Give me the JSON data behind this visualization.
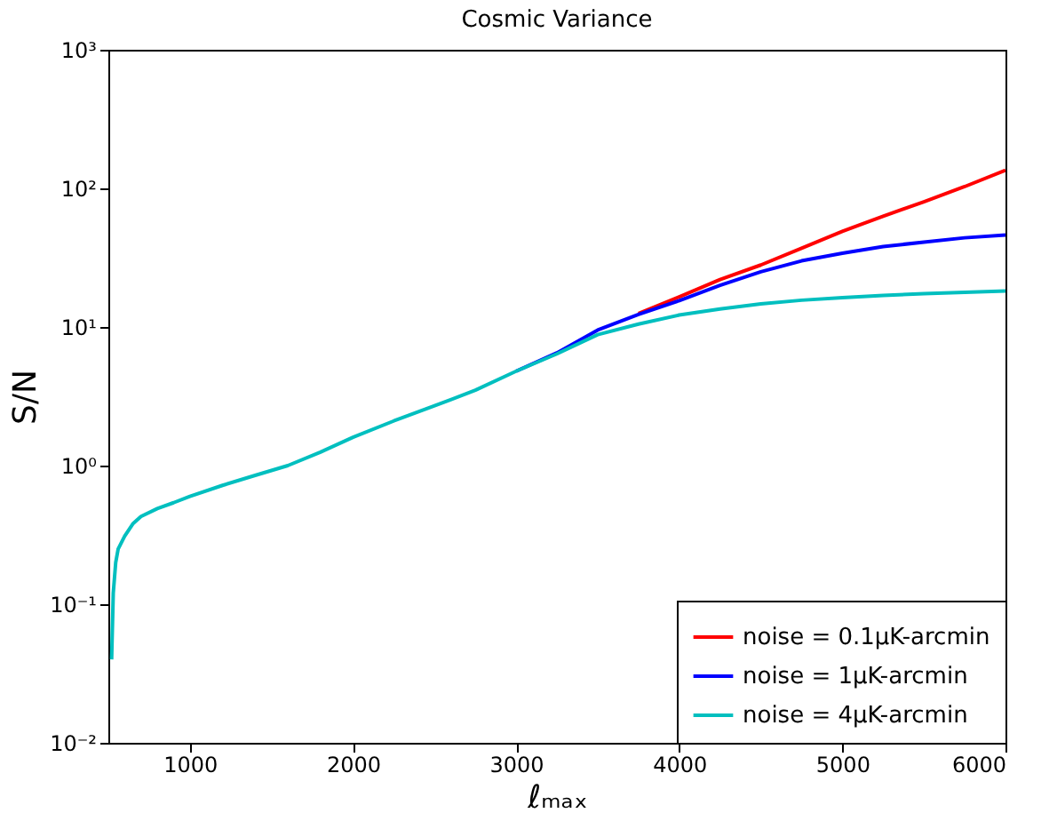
{
  "chart_data": {
    "type": "line",
    "title": "Cosmic Variance",
    "xlabel": "ℓₘₐₓ",
    "ylabel": "S/N",
    "log": "y",
    "x": [
      520,
      530,
      545,
      560,
      600,
      650,
      700,
      800,
      900,
      1000,
      1200,
      1400,
      1600,
      1800,
      2000,
      2250,
      2500,
      2750,
      3000,
      3250,
      3500,
      3750,
      4000,
      4250,
      4500,
      4750,
      5000,
      5250,
      5500,
      5750,
      6000
    ],
    "series": [
      {
        "name": "noise = 0.1μK-arcmin",
        "color": "#ff0000",
        "values": [
          null,
          null,
          null,
          null,
          null,
          null,
          null,
          null,
          null,
          null,
          null,
          null,
          null,
          null,
          null,
          null,
          null,
          null,
          null,
          null,
          null,
          12.5,
          16.5,
          22,
          28,
          37,
          49,
          63,
          80,
          103,
          135
        ]
      },
      {
        "name": "noise = 1μK-arcmin",
        "color": "#0000ff",
        "values": [
          null,
          null,
          null,
          null,
          null,
          null,
          null,
          null,
          null,
          null,
          null,
          null,
          null,
          null,
          null,
          null,
          null,
          null,
          4.8,
          6.5,
          9.5,
          12.3,
          15.5,
          20,
          25,
          30,
          34,
          38,
          41,
          44,
          46
        ]
      },
      {
        "name": "noise = 4μK-arcmin",
        "color": "#00bfbf",
        "values": [
          0.04,
          0.12,
          0.2,
          0.25,
          0.31,
          0.38,
          0.43,
          0.49,
          0.54,
          0.6,
          0.72,
          0.85,
          1.0,
          1.25,
          1.6,
          2.1,
          2.7,
          3.5,
          4.8,
          6.4,
          8.8,
          10.5,
          12.2,
          13.5,
          14.7,
          15.6,
          16.3,
          16.9,
          17.4,
          17.8,
          18.2
        ]
      }
    ],
    "xlim": [
      500,
      6000
    ],
    "xticks": [
      {
        "value": 1000,
        "label": "1000"
      },
      {
        "value": 2000,
        "label": "2000"
      },
      {
        "value": 3000,
        "label": "3000"
      },
      {
        "value": 4000,
        "label": "4000"
      },
      {
        "value": 5000,
        "label": "5000"
      },
      {
        "value": 6000,
        "label": "6000"
      }
    ],
    "ylim": [
      0.01,
      1000
    ],
    "yticks": [
      {
        "value": 0.01,
        "label": "10⁻²"
      },
      {
        "value": 0.1,
        "label": "10⁻¹"
      },
      {
        "value": 1,
        "label": "10⁰"
      },
      {
        "value": 10,
        "label": "10¹"
      },
      {
        "value": 100,
        "label": "10²"
      },
      {
        "value": 1000,
        "label": "10³"
      }
    ],
    "legend": "bottom right",
    "grid": false,
    "marker": "none",
    "line_style": "solid"
  }
}
